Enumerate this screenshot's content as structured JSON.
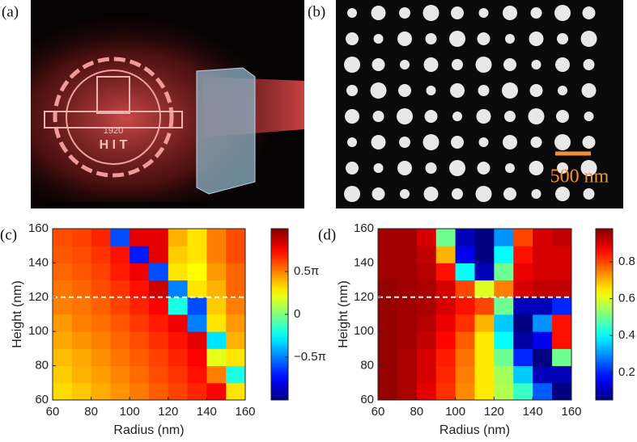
{
  "panels": [
    {
      "label": "(a)",
      "logo_year": "1920",
      "logo_text": "H I T"
    },
    {
      "label": "(b)",
      "scale_bar": "500 nm"
    }
  ],
  "chart_data": [
    {
      "type": "heatmap",
      "label": "(c)",
      "xlabel": "Radius (nm)",
      "ylabel": "Height (nm)",
      "x": [
        65,
        75,
        85,
        95,
        105,
        115,
        125,
        135,
        145,
        155
      ],
      "y": [
        65,
        75,
        85,
        95,
        105,
        115,
        125,
        135,
        145,
        155
      ],
      "z": [
        [
          0.32,
          0.36,
          0.41,
          0.46,
          0.51,
          0.57,
          0.62,
          0.68,
          0.75,
          0.3
        ],
        [
          0.35,
          0.4,
          0.44,
          0.49,
          0.54,
          0.6,
          0.65,
          0.72,
          0.5,
          -0.2
        ],
        [
          0.38,
          0.42,
          0.47,
          0.52,
          0.57,
          0.62,
          0.68,
          0.75,
          0.2,
          0.3
        ],
        [
          0.42,
          0.46,
          0.5,
          0.55,
          0.6,
          0.66,
          0.72,
          0.8,
          -0.3,
          0.4
        ],
        [
          0.45,
          0.5,
          0.53,
          0.58,
          0.64,
          0.7,
          0.78,
          -0.5,
          0.3,
          0.45
        ],
        [
          0.5,
          0.52,
          0.56,
          0.62,
          0.68,
          0.75,
          -0.2,
          -0.6,
          0.35,
          0.5
        ],
        [
          0.52,
          0.55,
          0.6,
          0.65,
          0.72,
          0.85,
          -0.5,
          0.3,
          0.4,
          0.55
        ],
        [
          0.55,
          0.58,
          0.62,
          0.7,
          0.78,
          -0.6,
          0.3,
          0.25,
          0.45,
          0.55
        ],
        [
          0.58,
          0.6,
          0.65,
          0.72,
          -0.7,
          0.8,
          0.35,
          0.3,
          0.5,
          0.6
        ],
        [
          0.6,
          0.62,
          0.68,
          -0.6,
          0.8,
          0.8,
          0.4,
          0.3,
          0.5,
          0.6
        ]
      ],
      "xlim": [
        60,
        160
      ],
      "ylim": [
        60,
        160
      ],
      "xticks": [
        60,
        80,
        100,
        120,
        140,
        160
      ],
      "yticks": [
        60,
        80,
        100,
        120,
        140,
        160
      ],
      "hline": 120,
      "colormap": "jet",
      "clim": [
        -1,
        1
      ],
      "cticks": [
        {
          "value": -0.5,
          "label": "−0.5π"
        },
        0,
        {
          "value": 0.5,
          "label": "0.5π"
        }
      ]
    },
    {
      "type": "heatmap",
      "label": "(d)",
      "xlabel": "Radius (nm)",
      "ylabel": "Height (nm)",
      "x": [
        65,
        75,
        85,
        95,
        105,
        115,
        125,
        135,
        145,
        155
      ],
      "y": [
        65,
        75,
        85,
        95,
        105,
        115,
        125,
        135,
        145,
        155
      ],
      "z": [
        [
          0.96,
          0.94,
          0.89,
          0.82,
          0.74,
          0.65,
          0.56,
          0.45,
          0.25,
          0.05
        ],
        [
          0.96,
          0.94,
          0.9,
          0.83,
          0.75,
          0.65,
          0.55,
          0.35,
          0.1,
          0.1
        ],
        [
          0.96,
          0.94,
          0.9,
          0.84,
          0.76,
          0.65,
          0.5,
          0.2,
          0.05,
          0.5
        ],
        [
          0.96,
          0.95,
          0.92,
          0.86,
          0.78,
          0.65,
          0.4,
          0.08,
          0.15,
          0.85
        ],
        [
          0.96,
          0.95,
          0.93,
          0.88,
          0.82,
          0.7,
          0.35,
          0.05,
          0.3,
          0.85
        ],
        [
          0.96,
          0.95,
          0.94,
          0.9,
          0.85,
          0.8,
          0.5,
          0.1,
          0.1,
          0.2
        ],
        [
          0.96,
          0.95,
          0.94,
          0.9,
          0.8,
          0.6,
          0.75,
          0.9,
          0.92,
          0.92
        ],
        [
          0.95,
          0.95,
          0.93,
          0.85,
          0.4,
          0.1,
          0.5,
          0.88,
          0.9,
          0.9
        ],
        [
          0.95,
          0.95,
          0.92,
          0.7,
          0.15,
          0.05,
          0.4,
          0.85,
          0.9,
          0.9
        ],
        [
          0.95,
          0.95,
          0.9,
          0.5,
          0.1,
          0.05,
          0.3,
          0.8,
          0.9,
          0.92
        ]
      ],
      "xlim": [
        60,
        160
      ],
      "ylim": [
        60,
        160
      ],
      "xticks": [
        60,
        80,
        100,
        120,
        140,
        160
      ],
      "yticks": [
        60,
        80,
        100,
        120,
        140,
        160
      ],
      "hline": 120,
      "colormap": "jet",
      "clim": [
        0.05,
        0.98
      ],
      "cticks": [
        0.2,
        0.4,
        0.6,
        0.8
      ]
    }
  ]
}
